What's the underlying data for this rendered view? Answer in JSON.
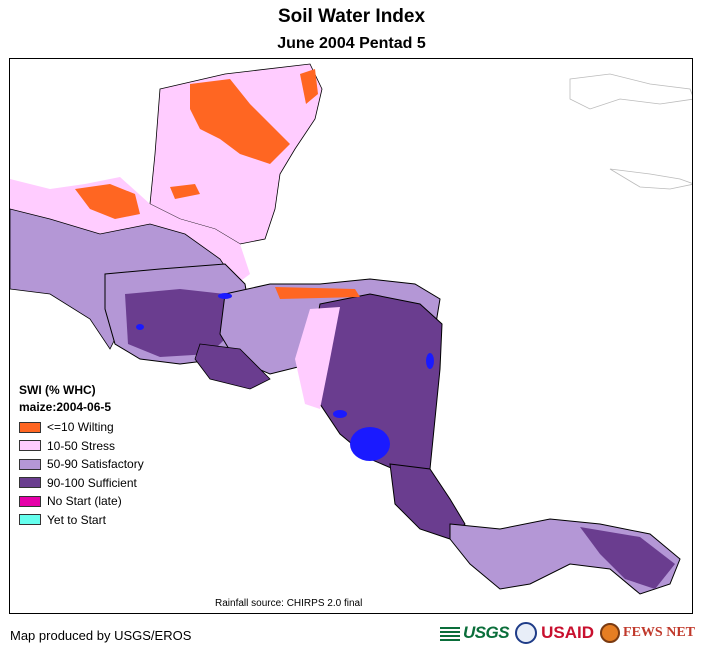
{
  "title": "Soil Water Index",
  "subtitle": "June 2004 Pentad 5",
  "legend": {
    "title": "SWI (% WHC)",
    "subtitle": "maize:2004-06-5",
    "items": [
      {
        "label": "<=10 Wilting",
        "color": "#ff6622"
      },
      {
        "label": "10-50 Stress",
        "color": "#ffccff"
      },
      {
        "label": "50-90 Satisfactory",
        "color": "#b497d6"
      },
      {
        "label": "90-100 Sufficient",
        "color": "#6a3d8f"
      },
      {
        "label": "No Start (late)",
        "color": "#e600a9"
      },
      {
        "label": "Yet to Start",
        "color": "#66ffee"
      }
    ]
  },
  "source": "Rainfall source: CHIRPS 2.0 final",
  "credit": "Map produced by USGS/EROS",
  "logos": {
    "usgs": "USGS",
    "usaid": "USAID",
    "fews": "FEWS NET"
  }
}
